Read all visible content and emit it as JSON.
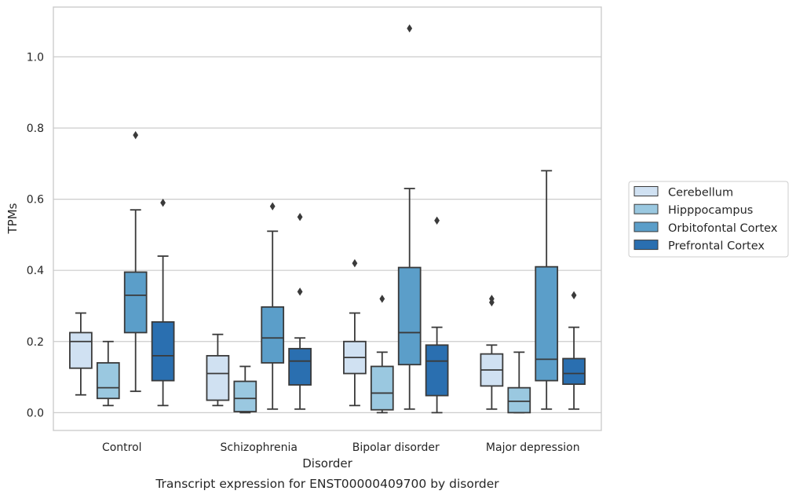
{
  "chart_data": {
    "type": "box",
    "caption": "Transcript expression for ENST00000409700 by disorder",
    "xlabel": "Disorder",
    "ylabel": "TPMs",
    "ylim": [
      -0.05,
      1.14
    ],
    "yticks": [
      "0.0",
      "0.2",
      "0.4",
      "0.6",
      "0.8",
      "1.0"
    ],
    "grid": true,
    "legend_position": "right",
    "categories": [
      "Control",
      "Schizophrenia",
      "Bipolar disorder",
      "Major depression"
    ],
    "series": [
      {
        "name": "Cerebellum",
        "color": "#d0e1f2",
        "boxes": [
          {
            "whislo": 0.05,
            "q1": 0.125,
            "med": 0.2,
            "q3": 0.225,
            "whishi": 0.28,
            "fliers": []
          },
          {
            "whislo": 0.02,
            "q1": 0.035,
            "med": 0.11,
            "q3": 0.16,
            "whishi": 0.22,
            "fliers": []
          },
          {
            "whislo": 0.02,
            "q1": 0.11,
            "med": 0.155,
            "q3": 0.2,
            "whishi": 0.28,
            "fliers": [
              0.42
            ]
          },
          {
            "whislo": 0.01,
            "q1": 0.075,
            "med": 0.12,
            "q3": 0.165,
            "whishi": 0.19,
            "fliers": [
              0.31,
              0.32
            ]
          }
        ]
      },
      {
        "name": "Hipppocampus",
        "color": "#9ac8e0",
        "boxes": [
          {
            "whislo": 0.02,
            "q1": 0.04,
            "med": 0.07,
            "q3": 0.14,
            "whishi": 0.2,
            "fliers": []
          },
          {
            "whislo": 0.0,
            "q1": 0.003,
            "med": 0.04,
            "q3": 0.088,
            "whishi": 0.13,
            "fliers": []
          },
          {
            "whislo": 0.0,
            "q1": 0.008,
            "med": 0.055,
            "q3": 0.13,
            "whishi": 0.17,
            "fliers": [
              0.32
            ]
          },
          {
            "whislo": 0.0,
            "q1": 0.0,
            "med": 0.032,
            "q3": 0.07,
            "whishi": 0.17,
            "fliers": []
          }
        ]
      },
      {
        "name": "Orbitofontal Cortex",
        "color": "#5b9ec9",
        "boxes": [
          {
            "whislo": 0.06,
            "q1": 0.225,
            "med": 0.33,
            "q3": 0.395,
            "whishi": 0.57,
            "fliers": [
              0.78
            ]
          },
          {
            "whislo": 0.01,
            "q1": 0.14,
            "med": 0.21,
            "q3": 0.297,
            "whishi": 0.51,
            "fliers": [
              0.58
            ]
          },
          {
            "whislo": 0.01,
            "q1": 0.135,
            "med": 0.225,
            "q3": 0.408,
            "whishi": 0.63,
            "fliers": [
              1.08
            ]
          },
          {
            "whislo": 0.01,
            "q1": 0.09,
            "med": 0.15,
            "q3": 0.41,
            "whishi": 0.68,
            "fliers": []
          }
        ]
      },
      {
        "name": "Prefrontal Cortex",
        "color": "#2a6fb0",
        "boxes": [
          {
            "whislo": 0.02,
            "q1": 0.09,
            "med": 0.16,
            "q3": 0.255,
            "whishi": 0.44,
            "fliers": [
              0.59
            ]
          },
          {
            "whislo": 0.01,
            "q1": 0.078,
            "med": 0.145,
            "q3": 0.18,
            "whishi": 0.21,
            "fliers": [
              0.34,
              0.55
            ]
          },
          {
            "whislo": 0.0,
            "q1": 0.048,
            "med": 0.145,
            "q3": 0.19,
            "whishi": 0.24,
            "fliers": [
              0.54
            ]
          },
          {
            "whislo": 0.01,
            "q1": 0.08,
            "med": 0.11,
            "q3": 0.152,
            "whishi": 0.24,
            "fliers": [
              0.33
            ]
          }
        ]
      }
    ]
  }
}
